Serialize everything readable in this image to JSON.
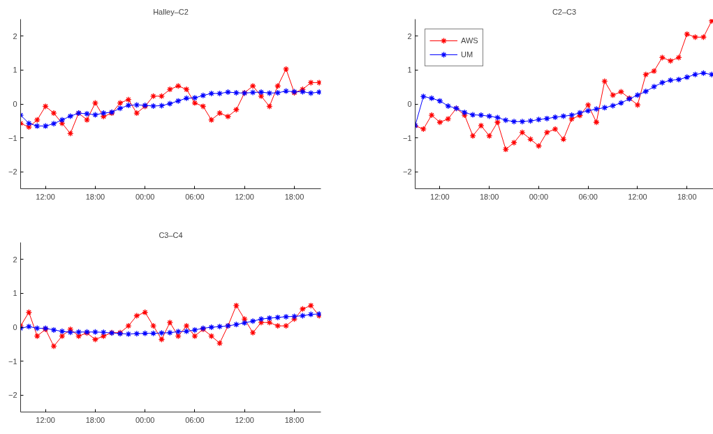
{
  "chart_data": [
    {
      "type": "line",
      "title": "Halley–C2",
      "x": [
        "2000-01-01T09:00",
        "2000-01-01T10:00",
        "2000-01-01T11:00",
        "2000-01-01T12:00",
        "2000-01-01T13:00",
        "2000-01-01T14:00",
        "2000-01-01T15:00",
        "2000-01-01T16:00",
        "2000-01-01T17:00",
        "2000-01-01T18:00",
        "2000-01-01T19:00",
        "2000-01-01T20:00",
        "2000-01-01T21:00",
        "2000-01-01T22:00",
        "2000-01-01T23:00",
        "2000-01-02T00:00",
        "2000-01-02T01:00",
        "2000-01-02T02:00",
        "2000-01-02T03:00",
        "2000-01-02T04:00",
        "2000-01-02T05:00",
        "2000-01-02T06:00",
        "2000-01-02T07:00",
        "2000-01-02T08:00",
        "2000-01-02T09:00",
        "2000-01-02T10:00",
        "2000-01-02T11:00",
        "2000-01-02T12:00",
        "2000-01-02T13:00",
        "2000-01-02T14:00",
        "2000-01-02T15:00",
        "2000-01-02T16:00",
        "2000-01-02T17:00",
        "2000-01-02T18:00",
        "2000-01-02T19:00",
        "2000-01-02T20:00",
        "2000-01-02T21:00"
      ],
      "series": [
        {
          "color": "#ff0000",
          "values": [
            -0.57,
            -0.68,
            -0.47,
            -0.07,
            -0.27,
            -0.57,
            -0.87,
            -0.27,
            -0.47,
            0.03,
            -0.37,
            -0.27,
            0.03,
            0.13,
            -0.27,
            -0.07,
            0.23,
            0.23,
            0.43,
            0.53,
            0.43,
            0.03,
            -0.07,
            -0.47,
            -0.27,
            -0.37,
            -0.17,
            0.33,
            0.53,
            0.23,
            -0.07,
            0.53,
            1.03,
            0.33,
            0.43,
            0.63,
            0.63
          ]
        },
        {
          "color": "#0000ff",
          "values": [
            -0.33,
            -0.57,
            -0.65,
            -0.65,
            -0.58,
            -0.47,
            -0.36,
            -0.27,
            -0.29,
            -0.32,
            -0.27,
            -0.24,
            -0.13,
            -0.04,
            -0.03,
            -0.04,
            -0.06,
            -0.05,
            0.01,
            0.09,
            0.17,
            0.18,
            0.25,
            0.31,
            0.31,
            0.35,
            0.33,
            0.32,
            0.34,
            0.35,
            0.32,
            0.33,
            0.38,
            0.36,
            0.36,
            0.32,
            0.35
          ]
        }
      ],
      "xlim": [
        "2000-01-01T09:00",
        "2000-01-02T21:12"
      ],
      "xticks": [
        {
          "value": "2000-01-01T12:00",
          "label": "12:00"
        },
        {
          "value": "2000-01-01T18:00",
          "label": "18:00"
        },
        {
          "value": "2000-01-02T00:00",
          "label": "00:00"
        },
        {
          "value": "2000-01-02T06:00",
          "label": "06:00"
        },
        {
          "value": "2000-01-02T12:00",
          "label": "12:00"
        },
        {
          "value": "2000-01-02T18:00",
          "label": "18:00"
        }
      ],
      "ylim": [
        -2.5,
        2.5
      ],
      "yticks": [
        -2,
        -1,
        0,
        1,
        2
      ],
      "marker": "cross",
      "grid": false,
      "legend": false
    },
    {
      "type": "line",
      "title": "C2–C3",
      "x": [
        "2000-01-01T09:00",
        "2000-01-01T10:00",
        "2000-01-01T11:00",
        "2000-01-01T12:00",
        "2000-01-01T13:00",
        "2000-01-01T14:00",
        "2000-01-01T15:00",
        "2000-01-01T16:00",
        "2000-01-01T17:00",
        "2000-01-01T18:00",
        "2000-01-01T19:00",
        "2000-01-01T20:00",
        "2000-01-01T21:00",
        "2000-01-01T22:00",
        "2000-01-01T23:00",
        "2000-01-02T00:00",
        "2000-01-02T01:00",
        "2000-01-02T02:00",
        "2000-01-02T03:00",
        "2000-01-02T04:00",
        "2000-01-02T05:00",
        "2000-01-02T06:00",
        "2000-01-02T07:00",
        "2000-01-02T08:00",
        "2000-01-02T09:00",
        "2000-01-02T10:00",
        "2000-01-02T11:00",
        "2000-01-02T12:00",
        "2000-01-02T13:00",
        "2000-01-02T14:00",
        "2000-01-02T15:00",
        "2000-01-02T16:00",
        "2000-01-02T17:00",
        "2000-01-02T18:00",
        "2000-01-02T19:00",
        "2000-01-02T20:00",
        "2000-01-02T21:00"
      ],
      "series": [
        {
          "name": "AWS",
          "color": "#ff0000",
          "values": [
            -0.64,
            -0.74,
            -0.33,
            -0.54,
            -0.44,
            -0.13,
            -0.33,
            -0.94,
            -0.64,
            -0.94,
            -0.54,
            -1.34,
            -1.14,
            -0.84,
            -1.04,
            -1.24,
            -0.84,
            -0.74,
            -1.04,
            -0.44,
            -0.34,
            -0.03,
            -0.54,
            0.67,
            0.26,
            0.36,
            0.17,
            -0.03,
            0.87,
            0.97,
            1.37,
            1.27,
            1.37,
            2.06,
            1.97,
            1.97,
            2.45
          ]
        },
        {
          "name": "UM",
          "color": "#0000ff",
          "values": [
            -0.64,
            0.22,
            0.17,
            0.09,
            -0.06,
            -0.13,
            -0.25,
            -0.32,
            -0.33,
            -0.36,
            -0.4,
            -0.48,
            -0.52,
            -0.52,
            -0.5,
            -0.46,
            -0.43,
            -0.39,
            -0.36,
            -0.33,
            -0.26,
            -0.2,
            -0.15,
            -0.11,
            -0.05,
            0.03,
            0.15,
            0.26,
            0.37,
            0.51,
            0.63,
            0.7,
            0.72,
            0.79,
            0.87,
            0.91,
            0.87
          ]
        }
      ],
      "xlim": [
        "2000-01-01T09:00",
        "2000-01-02T21:12"
      ],
      "xticks": [
        {
          "value": "2000-01-01T12:00",
          "label": "12:00"
        },
        {
          "value": "2000-01-01T18:00",
          "label": "18:00"
        },
        {
          "value": "2000-01-02T00:00",
          "label": "00:00"
        },
        {
          "value": "2000-01-02T06:00",
          "label": "06:00"
        },
        {
          "value": "2000-01-02T12:00",
          "label": "12:00"
        },
        {
          "value": "2000-01-02T18:00",
          "label": "18:00"
        }
      ],
      "ylim": [
        -2.5,
        2.5
      ],
      "yticks": [
        -2,
        -1,
        0,
        1,
        2
      ],
      "marker": "cross",
      "grid": false,
      "legend": "top left"
    },
    {
      "type": "line",
      "title": "C3–C4",
      "x": [
        "2000-01-01T09:00",
        "2000-01-01T10:00",
        "2000-01-01T11:00",
        "2000-01-01T12:00",
        "2000-01-01T13:00",
        "2000-01-01T14:00",
        "2000-01-01T15:00",
        "2000-01-01T16:00",
        "2000-01-01T17:00",
        "2000-01-01T18:00",
        "2000-01-01T19:00",
        "2000-01-01T20:00",
        "2000-01-01T21:00",
        "2000-01-01T22:00",
        "2000-01-01T23:00",
        "2000-01-02T00:00",
        "2000-01-02T01:00",
        "2000-01-02T02:00",
        "2000-01-02T03:00",
        "2000-01-02T04:00",
        "2000-01-02T05:00",
        "2000-01-02T06:00",
        "2000-01-02T07:00",
        "2000-01-02T08:00",
        "2000-01-02T09:00",
        "2000-01-02T10:00",
        "2000-01-02T11:00",
        "2000-01-02T12:00",
        "2000-01-02T13:00",
        "2000-01-02T14:00",
        "2000-01-02T15:00",
        "2000-01-02T16:00",
        "2000-01-02T17:00",
        "2000-01-02T18:00",
        "2000-01-02T19:00",
        "2000-01-02T20:00",
        "2000-01-02T21:00"
      ],
      "series": [
        {
          "color": "#ff0000",
          "values": [
            0.04,
            0.44,
            -0.26,
            -0.06,
            -0.56,
            -0.26,
            -0.06,
            -0.26,
            -0.17,
            -0.36,
            -0.26,
            -0.16,
            -0.16,
            0.04,
            0.34,
            0.44,
            0.04,
            -0.36,
            0.14,
            -0.26,
            0.04,
            -0.26,
            -0.06,
            -0.26,
            -0.47,
            0.04,
            0.64,
            0.24,
            -0.16,
            0.14,
            0.14,
            0.04,
            0.04,
            0.24,
            0.54,
            0.64,
            0.34
          ]
        },
        {
          "color": "#0000ff",
          "values": [
            -0.03,
            0.02,
            -0.03,
            -0.03,
            -0.08,
            -0.12,
            -0.15,
            -0.14,
            -0.14,
            -0.14,
            -0.15,
            -0.17,
            -0.19,
            -0.2,
            -0.19,
            -0.18,
            -0.18,
            -0.17,
            -0.16,
            -0.13,
            -0.12,
            -0.08,
            -0.03,
            0.0,
            0.02,
            0.04,
            0.08,
            0.13,
            0.18,
            0.24,
            0.27,
            0.29,
            0.31,
            0.32,
            0.34,
            0.38,
            0.39
          ]
        }
      ],
      "xlim": [
        "2000-01-01T09:00",
        "2000-01-02T21:12"
      ],
      "xticks": [
        {
          "value": "2000-01-01T12:00",
          "label": "12:00"
        },
        {
          "value": "2000-01-01T18:00",
          "label": "18:00"
        },
        {
          "value": "2000-01-02T00:00",
          "label": "00:00"
        },
        {
          "value": "2000-01-02T06:00",
          "label": "06:00"
        },
        {
          "value": "2000-01-02T12:00",
          "label": "12:00"
        },
        {
          "value": "2000-01-02T18:00",
          "label": "18:00"
        }
      ],
      "ylim": [
        -2.5,
        2.5
      ],
      "yticks": [
        -2,
        -1,
        0,
        1,
        2
      ],
      "marker": "cross",
      "grid": false,
      "legend": false
    }
  ]
}
